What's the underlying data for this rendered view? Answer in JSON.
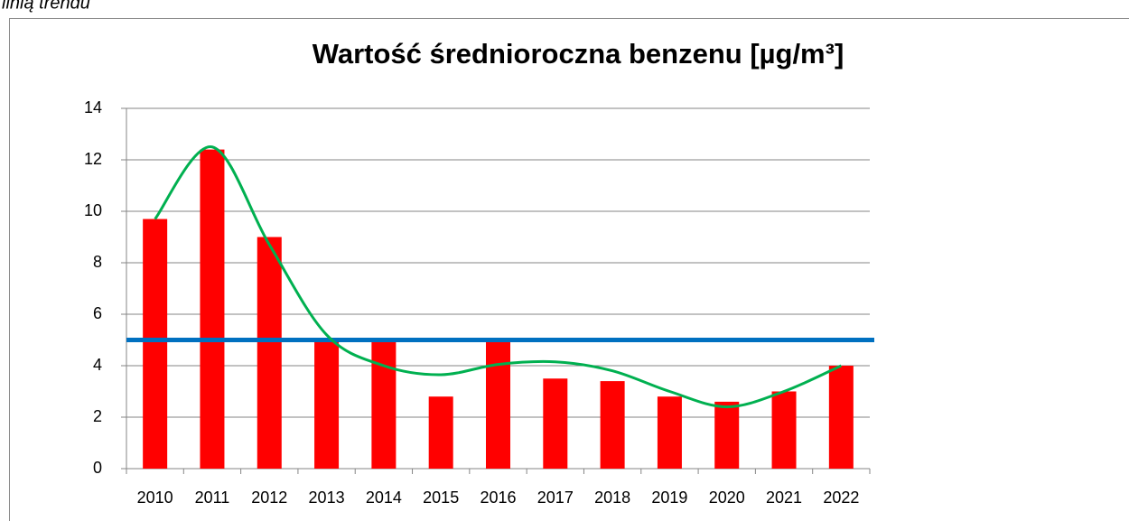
{
  "caption": "linią trendu",
  "chart_data": {
    "type": "bar",
    "title": "Wartość średnioroczna benzenu [µg/m³]",
    "categories": [
      "2010",
      "2011",
      "2012",
      "2013",
      "2014",
      "2015",
      "2016",
      "2017",
      "2018",
      "2019",
      "2020",
      "2021",
      "2022"
    ],
    "series": [
      {
        "color": "#ff0000",
        "values": [
          9.7,
          12.4,
          9.0,
          5.0,
          5.0,
          2.8,
          5.0,
          3.5,
          3.4,
          2.8,
          2.6,
          3.0,
          4.0
        ]
      },
      {
        "type": "line",
        "color": "#00b050",
        "values": [
          9.7,
          12.5,
          8.7,
          5.2,
          4.0,
          3.65,
          4.05,
          4.15,
          3.8,
          3.0,
          2.4,
          3.0,
          4.0
        ]
      }
    ],
    "limit": {
      "value": 5,
      "color": "#0070c0"
    },
    "ylim": [
      0,
      14
    ],
    "yticks": [
      0,
      2,
      4,
      6,
      8,
      10,
      12,
      14
    ],
    "grid": true
  }
}
